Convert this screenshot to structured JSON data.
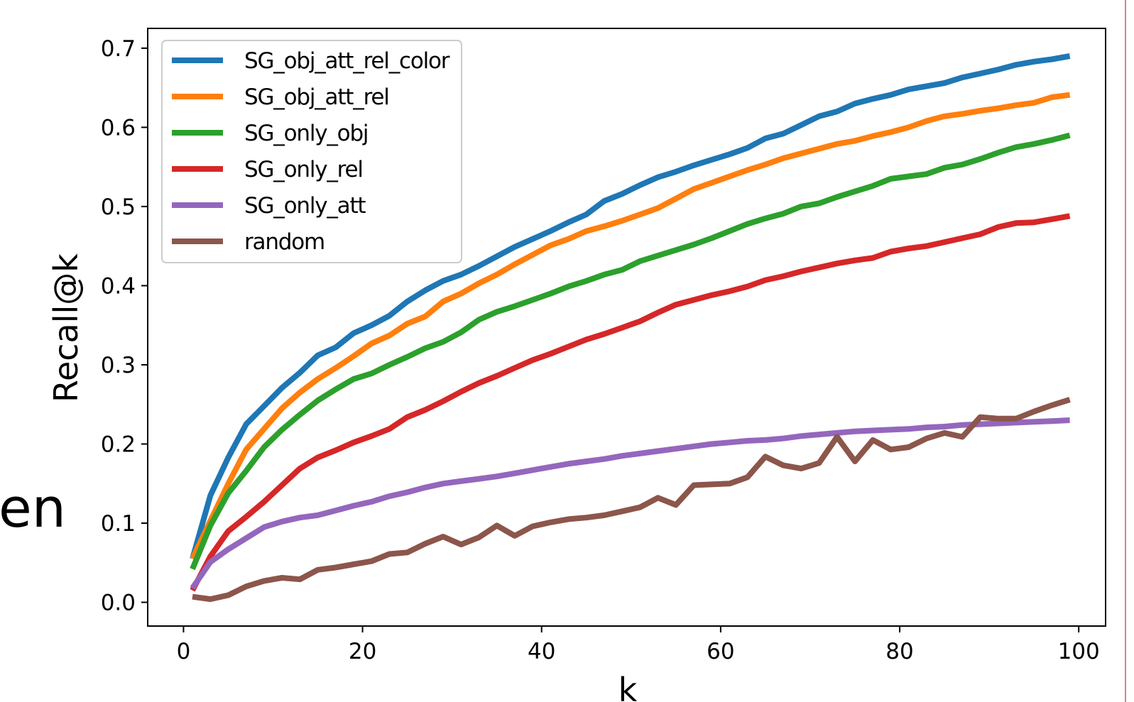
{
  "clipped_text": "en",
  "chart_data": {
    "type": "line",
    "title": "",
    "xlabel": "k",
    "ylabel": "Recall@k",
    "xlim": [
      -4,
      103
    ],
    "ylim": [
      -0.03,
      0.725
    ],
    "xticks": [
      0,
      20,
      40,
      60,
      80,
      100
    ],
    "yticks": [
      0.0,
      0.1,
      0.2,
      0.3,
      0.4,
      0.5,
      0.6,
      0.7
    ],
    "xtick_labels": [
      "0",
      "20",
      "40",
      "60",
      "80",
      "100"
    ],
    "ytick_labels": [
      "0.0",
      "0.1",
      "0.2",
      "0.3",
      "0.4",
      "0.5",
      "0.6",
      "0.7"
    ],
    "grid": false,
    "legend_position": "upper-left",
    "x": [
      1,
      3,
      5,
      7,
      9,
      11,
      13,
      15,
      17,
      19,
      21,
      23,
      25,
      27,
      29,
      31,
      33,
      35,
      37,
      39,
      41,
      43,
      45,
      47,
      49,
      51,
      53,
      55,
      57,
      59,
      61,
      63,
      65,
      67,
      69,
      71,
      73,
      75,
      77,
      79,
      81,
      83,
      85,
      87,
      89,
      91,
      93,
      95,
      97,
      99
    ],
    "series": [
      {
        "name": "SG_obj_att_rel_color",
        "color": "#1f77b4",
        "values": [
          0.055,
          0.135,
          0.183,
          0.225,
          0.248,
          0.271,
          0.29,
          0.312,
          0.322,
          0.34,
          0.35,
          0.362,
          0.38,
          0.394,
          0.406,
          0.414,
          0.425,
          0.437,
          0.449,
          0.459,
          0.469,
          0.48,
          0.49,
          0.507,
          0.516,
          0.527,
          0.537,
          0.544,
          0.552,
          0.559,
          0.566,
          0.574,
          0.586,
          0.592,
          0.603,
          0.614,
          0.62,
          0.63,
          0.636,
          0.641,
          0.648,
          0.652,
          0.656,
          0.663,
          0.668,
          0.673,
          0.679,
          0.683,
          0.686,
          0.69
        ]
      },
      {
        "name": "SG_obj_att_rel",
        "color": "#ff7f0e",
        "values": [
          0.055,
          0.103,
          0.15,
          0.193,
          0.219,
          0.245,
          0.265,
          0.282,
          0.296,
          0.311,
          0.327,
          0.337,
          0.352,
          0.361,
          0.38,
          0.39,
          0.403,
          0.414,
          0.427,
          0.439,
          0.451,
          0.459,
          0.469,
          0.475,
          0.482,
          0.49,
          0.498,
          0.51,
          0.522,
          0.53,
          0.538,
          0.546,
          0.553,
          0.561,
          0.567,
          0.573,
          0.579,
          0.583,
          0.589,
          0.594,
          0.6,
          0.608,
          0.614,
          0.617,
          0.621,
          0.624,
          0.628,
          0.631,
          0.638,
          0.641
        ]
      },
      {
        "name": "SG_only_obj",
        "color": "#2ca02c",
        "values": [
          0.042,
          0.097,
          0.138,
          0.166,
          0.196,
          0.218,
          0.237,
          0.255,
          0.269,
          0.282,
          0.289,
          0.3,
          0.31,
          0.321,
          0.329,
          0.341,
          0.357,
          0.367,
          0.374,
          0.382,
          0.39,
          0.399,
          0.406,
          0.414,
          0.42,
          0.431,
          0.438,
          0.445,
          0.452,
          0.46,
          0.469,
          0.478,
          0.485,
          0.491,
          0.5,
          0.504,
          0.512,
          0.519,
          0.526,
          0.535,
          0.538,
          0.541,
          0.549,
          0.553,
          0.56,
          0.568,
          0.575,
          0.579,
          0.584,
          0.59
        ]
      },
      {
        "name": "SG_only_rel",
        "color": "#d62728",
        "values": [
          0.015,
          0.058,
          0.09,
          0.108,
          0.127,
          0.148,
          0.169,
          0.183,
          0.192,
          0.202,
          0.21,
          0.219,
          0.234,
          0.243,
          0.254,
          0.266,
          0.277,
          0.286,
          0.296,
          0.306,
          0.314,
          0.323,
          0.332,
          0.339,
          0.347,
          0.355,
          0.366,
          0.376,
          0.382,
          0.388,
          0.393,
          0.399,
          0.407,
          0.412,
          0.418,
          0.423,
          0.428,
          0.432,
          0.435,
          0.443,
          0.447,
          0.45,
          0.455,
          0.46,
          0.465,
          0.474,
          0.479,
          0.48,
          0.484,
          0.488
        ]
      },
      {
        "name": "SG_only_att",
        "color": "#9467bd",
        "values": [
          0.018,
          0.051,
          0.067,
          0.081,
          0.095,
          0.102,
          0.107,
          0.11,
          0.116,
          0.122,
          0.127,
          0.134,
          0.139,
          0.145,
          0.15,
          0.153,
          0.156,
          0.159,
          0.163,
          0.167,
          0.171,
          0.175,
          0.178,
          0.181,
          0.185,
          0.188,
          0.191,
          0.194,
          0.197,
          0.2,
          0.202,
          0.204,
          0.205,
          0.207,
          0.21,
          0.212,
          0.214,
          0.216,
          0.217,
          0.218,
          0.219,
          0.221,
          0.222,
          0.224,
          0.225,
          0.226,
          0.227,
          0.228,
          0.229,
          0.23
        ]
      },
      {
        "name": "random",
        "color": "#8c564b",
        "values": [
          0.007,
          0.004,
          0.009,
          0.02,
          0.027,
          0.031,
          0.029,
          0.041,
          0.044,
          0.048,
          0.052,
          0.061,
          0.063,
          0.074,
          0.083,
          0.073,
          0.082,
          0.097,
          0.084,
          0.096,
          0.101,
          0.105,
          0.107,
          0.11,
          0.115,
          0.12,
          0.132,
          0.123,
          0.148,
          0.149,
          0.15,
          0.158,
          0.184,
          0.173,
          0.169,
          0.176,
          0.209,
          0.178,
          0.205,
          0.193,
          0.196,
          0.207,
          0.214,
          0.209,
          0.234,
          0.232,
          0.232,
          0.241,
          0.249,
          0.256
        ]
      }
    ]
  }
}
